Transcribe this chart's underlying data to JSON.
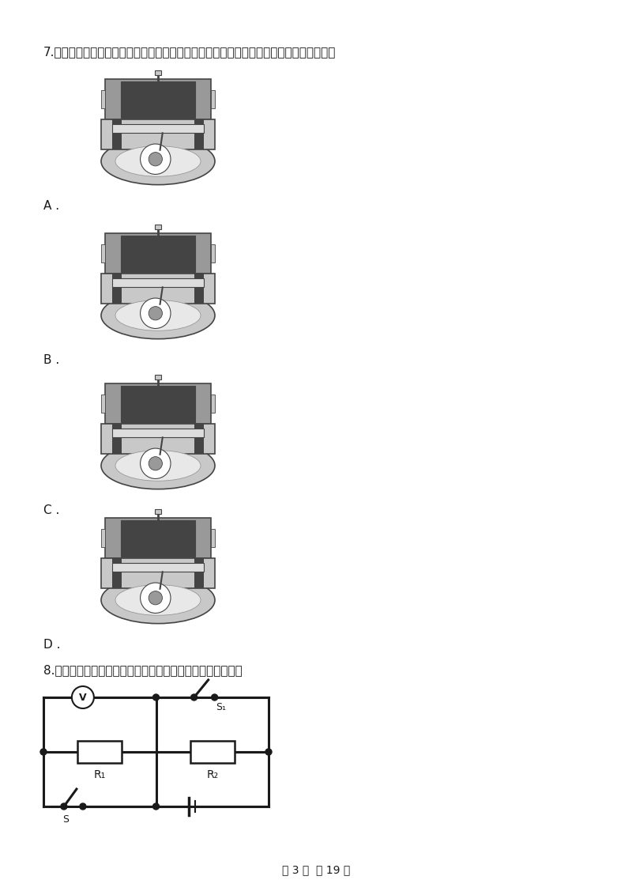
{
  "bg_color": "#ffffff",
  "text_color": "#1a1a1a",
  "q7_text": "7.（２分）汽油机是由四个冲程不断循环而工作的，如图所示，表示排气冲程的是（　　）",
  "q8_text": "8.（２分）在如图所示的电路中，下列说法正确的是（　　）",
  "page_footer": "第 3 页  共 19 页",
  "labels": [
    "A",
    "B",
    "C",
    "D"
  ],
  "line_color": "#1a1a1a"
}
